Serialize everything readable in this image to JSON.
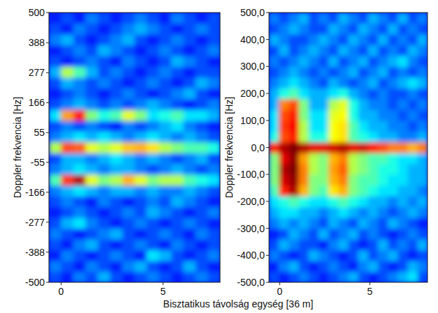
{
  "chart_data": [
    {
      "type": "heatmap",
      "y_label": "Doppler frekvencia [Hz]",
      "xlim": [
        -0.6,
        7.8
      ],
      "ylim": [
        -500,
        500
      ],
      "xticks": [
        0,
        5
      ],
      "yticks": [
        -500,
        -388,
        -277,
        -166,
        -55,
        55,
        166,
        277,
        388,
        500
      ],
      "zlim": [
        0,
        1
      ],
      "x_edges": [
        -0.6,
        0,
        0.6,
        1.2,
        1.8,
        2.4,
        3.0,
        3.6,
        4.2,
        4.8,
        5.4,
        6.0,
        6.6,
        7.2,
        7.8
      ],
      "y_edges": [
        -500,
        -460,
        -420,
        -380,
        -340,
        -300,
        -260,
        -220,
        -180,
        -140,
        -100,
        -60,
        -20,
        20,
        60,
        100,
        140,
        180,
        220,
        260,
        300,
        340,
        380,
        420,
        460,
        500
      ],
      "cells": [
        [
          0.2,
          0.15,
          0.25,
          0.2,
          0.3,
          0.2,
          0.15,
          0.2,
          0.25,
          0.2,
          0.15,
          0.2,
          0.25,
          0.2
        ],
        [
          0.25,
          0.2,
          0.15,
          0.25,
          0.2,
          0.15,
          0.25,
          0.3,
          0.2,
          0.15,
          0.2,
          0.3,
          0.2,
          0.15
        ],
        [
          0.15,
          0.25,
          0.2,
          0.15,
          0.2,
          0.25,
          0.2,
          0.15,
          0.35,
          0.3,
          0.2,
          0.15,
          0.2,
          0.25
        ],
        [
          0.2,
          0.15,
          0.25,
          0.3,
          0.2,
          0.15,
          0.2,
          0.25,
          0.2,
          0.15,
          0.25,
          0.2,
          0.15,
          0.2
        ],
        [
          0.25,
          0.2,
          0.15,
          0.2,
          0.25,
          0.3,
          0.2,
          0.15,
          0.2,
          0.25,
          0.2,
          0.15,
          0.25,
          0.2
        ],
        [
          0.2,
          0.3,
          0.35,
          0.25,
          0.2,
          0.15,
          0.2,
          0.25,
          0.2,
          0.15,
          0.2,
          0.25,
          0.2,
          0.15
        ],
        [
          0.15,
          0.2,
          0.25,
          0.2,
          0.15,
          0.2,
          0.25,
          0.2,
          0.3,
          0.25,
          0.2,
          0.15,
          0.2,
          0.25
        ],
        [
          0.2,
          0.25,
          0.2,
          0.15,
          0.25,
          0.2,
          0.15,
          0.2,
          0.25,
          0.2,
          0.3,
          0.25,
          0.2,
          0.15
        ],
        [
          0.25,
          0.3,
          0.35,
          0.3,
          0.25,
          0.3,
          0.3,
          0.25,
          0.3,
          0.25,
          0.25,
          0.3,
          0.25,
          0.2
        ],
        [
          0.45,
          0.82,
          0.95,
          0.6,
          0.5,
          0.55,
          0.7,
          0.6,
          0.5,
          0.55,
          0.55,
          0.45,
          0.4,
          0.35
        ],
        [
          0.25,
          0.3,
          0.35,
          0.3,
          0.25,
          0.3,
          0.3,
          0.25,
          0.2,
          0.25,
          0.3,
          0.25,
          0.2,
          0.25
        ],
        [
          0.2,
          0.3,
          0.3,
          0.25,
          0.3,
          0.35,
          0.3,
          0.25,
          0.3,
          0.25,
          0.2,
          0.25,
          0.3,
          0.2
        ],
        [
          0.55,
          0.8,
          0.78,
          0.6,
          0.55,
          0.6,
          0.68,
          0.7,
          0.65,
          0.55,
          0.5,
          0.45,
          0.45,
          0.4
        ],
        [
          0.25,
          0.3,
          0.35,
          0.3,
          0.35,
          0.3,
          0.25,
          0.3,
          0.35,
          0.3,
          0.25,
          0.3,
          0.25,
          0.2
        ],
        [
          0.2,
          0.25,
          0.2,
          0.25,
          0.2,
          0.15,
          0.25,
          0.2,
          0.25,
          0.3,
          0.35,
          0.25,
          0.2,
          0.15
        ],
        [
          0.35,
          0.72,
          0.85,
          0.5,
          0.4,
          0.45,
          0.6,
          0.5,
          0.35,
          0.4,
          0.45,
          0.35,
          0.35,
          0.3
        ],
        [
          0.2,
          0.25,
          0.3,
          0.25,
          0.2,
          0.25,
          0.2,
          0.25,
          0.3,
          0.25,
          0.2,
          0.15,
          0.2,
          0.25
        ],
        [
          0.15,
          0.2,
          0.25,
          0.2,
          0.15,
          0.2,
          0.25,
          0.2,
          0.15,
          0.2,
          0.25,
          0.3,
          0.2,
          0.15
        ],
        [
          0.2,
          0.3,
          0.25,
          0.2,
          0.25,
          0.2,
          0.15,
          0.2,
          0.25,
          0.2,
          0.15,
          0.2,
          0.3,
          0.25
        ],
        [
          0.3,
          0.55,
          0.45,
          0.3,
          0.2,
          0.25,
          0.2,
          0.15,
          0.2,
          0.25,
          0.2,
          0.15,
          0.2,
          0.2
        ],
        [
          0.2,
          0.15,
          0.2,
          0.25,
          0.2,
          0.15,
          0.25,
          0.2,
          0.15,
          0.2,
          0.3,
          0.25,
          0.2,
          0.15
        ],
        [
          0.15,
          0.2,
          0.25,
          0.2,
          0.3,
          0.25,
          0.2,
          0.15,
          0.2,
          0.25,
          0.2,
          0.15,
          0.2,
          0.25
        ],
        [
          0.25,
          0.3,
          0.2,
          0.15,
          0.2,
          0.25,
          0.3,
          0.2,
          0.15,
          0.2,
          0.25,
          0.2,
          0.15,
          0.2
        ],
        [
          0.2,
          0.15,
          0.25,
          0.2,
          0.15,
          0.2,
          0.25,
          0.3,
          0.25,
          0.2,
          0.15,
          0.2,
          0.25,
          0.2
        ],
        [
          0.15,
          0.2,
          0.15,
          0.25,
          0.2,
          0.15,
          0.2,
          0.25,
          0.2,
          0.15,
          0.25,
          0.2,
          0.15,
          0.2
        ]
      ]
    },
    {
      "type": "heatmap",
      "y_label": "Doppler frekvencia [Hz]",
      "xlim": [
        -0.6,
        8.2
      ],
      "ylim": [
        -500,
        500
      ],
      "xticks": [
        0,
        5
      ],
      "yticks": [
        {
          "value": -500,
          "label": "-500,0"
        },
        {
          "value": -400,
          "label": "-400,0"
        },
        {
          "value": -300,
          "label": "-300,0"
        },
        {
          "value": -200,
          "label": "-200,0"
        },
        {
          "value": -100,
          "label": "-100,0"
        },
        {
          "value": 0,
          "label": "0,0"
        },
        {
          "value": 100,
          "label": "100,0"
        },
        {
          "value": 200,
          "label": "200,0"
        },
        {
          "value": 300,
          "label": "300,0"
        },
        {
          "value": 400,
          "label": "400,0"
        },
        {
          "value": 500,
          "label": "500,0"
        }
      ],
      "zlim": [
        0,
        1
      ],
      "x_edges": [
        -0.6,
        -0.05,
        0.5,
        1.05,
        1.6,
        2.15,
        2.7,
        3.25,
        3.8,
        4.35,
        4.9,
        5.45,
        6.0,
        6.55,
        7.1,
        7.65,
        8.2
      ],
      "y_edges": [
        -500,
        -460,
        -420,
        -380,
        -340,
        -300,
        -260,
        -220,
        -180,
        -140,
        -100,
        -60,
        -20,
        20,
        60,
        100,
        140,
        180,
        220,
        260,
        300,
        340,
        380,
        420,
        460,
        500
      ],
      "cells": [
        [
          0.2,
          0.15,
          0.2,
          0.25,
          0.2,
          0.15,
          0.2,
          0.25,
          0.3,
          0.2,
          0.15,
          0.2,
          0.25,
          0.3,
          0.35,
          0.2
        ],
        [
          0.15,
          0.25,
          0.3,
          0.2,
          0.15,
          0.2,
          0.25,
          0.2,
          0.15,
          0.25,
          0.3,
          0.2,
          0.15,
          0.2,
          0.3,
          0.25
        ],
        [
          0.25,
          0.2,
          0.15,
          0.2,
          0.3,
          0.25,
          0.2,
          0.15,
          0.2,
          0.3,
          0.2,
          0.25,
          0.3,
          0.2,
          0.15,
          0.2
        ],
        [
          0.2,
          0.3,
          0.25,
          0.2,
          0.2,
          0.15,
          0.25,
          0.3,
          0.2,
          0.15,
          0.2,
          0.3,
          0.2,
          0.25,
          0.2,
          0.3
        ],
        [
          0.15,
          0.2,
          0.3,
          0.25,
          0.2,
          0.3,
          0.2,
          0.25,
          0.3,
          0.2,
          0.25,
          0.2,
          0.15,
          0.2,
          0.25,
          0.2
        ],
        [
          0.25,
          0.3,
          0.25,
          0.3,
          0.25,
          0.2,
          0.3,
          0.25,
          0.2,
          0.3,
          0.25,
          0.2,
          0.3,
          0.25,
          0.2,
          0.15
        ],
        [
          0.3,
          0.35,
          0.35,
          0.3,
          0.3,
          0.25,
          0.3,
          0.35,
          0.3,
          0.25,
          0.3,
          0.25,
          0.2,
          0.25,
          0.3,
          0.25
        ],
        [
          0.35,
          0.4,
          0.45,
          0.4,
          0.35,
          0.35,
          0.4,
          0.45,
          0.4,
          0.35,
          0.3,
          0.3,
          0.25,
          0.3,
          0.25,
          0.3
        ],
        [
          0.45,
          0.85,
          0.95,
          0.7,
          0.5,
          0.45,
          0.65,
          0.7,
          0.5,
          0.45,
          0.4,
          0.35,
          0.35,
          0.3,
          0.3,
          0.25
        ],
        [
          0.5,
          0.92,
          0.98,
          0.75,
          0.5,
          0.5,
          0.7,
          0.75,
          0.5,
          0.45,
          0.45,
          0.4,
          0.35,
          0.35,
          0.3,
          0.3
        ],
        [
          0.5,
          0.95,
          1.0,
          0.75,
          0.55,
          0.5,
          0.72,
          0.78,
          0.55,
          0.5,
          0.45,
          0.4,
          0.4,
          0.35,
          0.3,
          0.3
        ],
        [
          0.5,
          0.9,
          0.98,
          0.72,
          0.55,
          0.5,
          0.7,
          0.75,
          0.55,
          0.5,
          0.45,
          0.45,
          0.4,
          0.35,
          0.35,
          0.3
        ],
        [
          0.85,
          0.95,
          1.0,
          0.95,
          0.9,
          0.9,
          0.92,
          0.95,
          0.9,
          0.92,
          0.85,
          0.8,
          0.75,
          0.75,
          0.7,
          0.75
        ],
        [
          0.4,
          0.8,
          0.85,
          0.55,
          0.4,
          0.4,
          0.62,
          0.65,
          0.45,
          0.4,
          0.35,
          0.3,
          0.3,
          0.25,
          0.25,
          0.3
        ],
        [
          0.35,
          0.82,
          0.88,
          0.55,
          0.35,
          0.35,
          0.62,
          0.65,
          0.45,
          0.35,
          0.3,
          0.3,
          0.25,
          0.25,
          0.2,
          0.25
        ],
        [
          0.35,
          0.8,
          0.85,
          0.5,
          0.35,
          0.35,
          0.6,
          0.62,
          0.4,
          0.3,
          0.3,
          0.25,
          0.25,
          0.2,
          0.25,
          0.2
        ],
        [
          0.3,
          0.75,
          0.8,
          0.5,
          0.3,
          0.3,
          0.55,
          0.6,
          0.4,
          0.3,
          0.25,
          0.25,
          0.2,
          0.25,
          0.2,
          0.25
        ],
        [
          0.3,
          0.4,
          0.45,
          0.35,
          0.3,
          0.3,
          0.35,
          0.4,
          0.3,
          0.25,
          0.2,
          0.25,
          0.2,
          0.2,
          0.25,
          0.2
        ],
        [
          0.25,
          0.3,
          0.35,
          0.3,
          0.25,
          0.2,
          0.3,
          0.25,
          0.2,
          0.25,
          0.3,
          0.2,
          0.25,
          0.3,
          0.35,
          0.3
        ],
        [
          0.2,
          0.25,
          0.3,
          0.25,
          0.2,
          0.25,
          0.2,
          0.25,
          0.3,
          0.2,
          0.25,
          0.3,
          0.2,
          0.25,
          0.2,
          0.25
        ],
        [
          0.25,
          0.2,
          0.25,
          0.3,
          0.25,
          0.2,
          0.3,
          0.2,
          0.25,
          0.3,
          0.2,
          0.25,
          0.3,
          0.35,
          0.25,
          0.2
        ],
        [
          0.2,
          0.3,
          0.2,
          0.25,
          0.3,
          0.25,
          0.2,
          0.3,
          0.25,
          0.2,
          0.3,
          0.2,
          0.25,
          0.2,
          0.3,
          0.25
        ],
        [
          0.3,
          0.25,
          0.2,
          0.2,
          0.25,
          0.3,
          0.25,
          0.2,
          0.3,
          0.25,
          0.2,
          0.3,
          0.2,
          0.25,
          0.2,
          0.3
        ],
        [
          0.2,
          0.25,
          0.3,
          0.25,
          0.2,
          0.2,
          0.3,
          0.25,
          0.2,
          0.3,
          0.25,
          0.2,
          0.3,
          0.2,
          0.25,
          0.2
        ],
        [
          0.25,
          0.2,
          0.25,
          0.3,
          0.2,
          0.25,
          0.2,
          0.3,
          0.25,
          0.2,
          0.3,
          0.25,
          0.2,
          0.3,
          0.2,
          0.25
        ]
      ]
    }
  ],
  "x_label": "Bisztatikus távolság egység [36 m]"
}
